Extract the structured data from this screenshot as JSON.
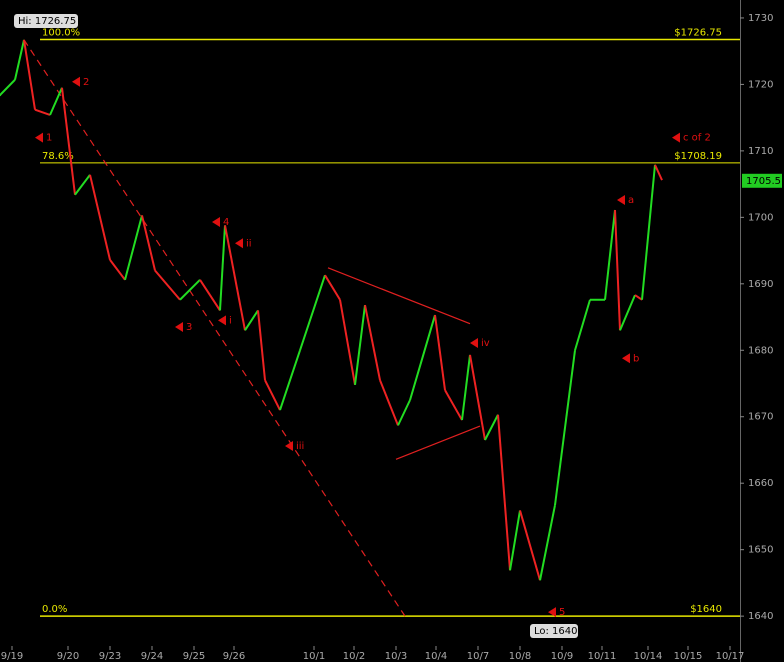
{
  "chart_data": {
    "type": "line",
    "xlim": [
      0,
      18.5
    ],
    "ylim": [
      1633.1,
      1732.7
    ],
    "xticks": [
      {
        "value": 0.3,
        "label": "9/19"
      },
      {
        "value": 1.7,
        "label": "9/20"
      },
      {
        "value": 2.75,
        "label": "9/23"
      },
      {
        "value": 3.8,
        "label": "9/24"
      },
      {
        "value": 4.85,
        "label": "9/25"
      },
      {
        "value": 5.85,
        "label": "9/26"
      },
      {
        "value": 7.85,
        "label": "10/1"
      },
      {
        "value": 8.85,
        "label": "10/2"
      },
      {
        "value": 9.9,
        "label": "10/3"
      },
      {
        "value": 10.9,
        "label": "10/4"
      },
      {
        "value": 11.95,
        "label": "10/7"
      },
      {
        "value": 13,
        "label": "10/8"
      },
      {
        "value": 14.05,
        "label": "10/9"
      },
      {
        "value": 15.05,
        "label": "10/11"
      },
      {
        "value": 16.2,
        "label": "10/14"
      },
      {
        "value": 17.2,
        "label": "10/15"
      },
      {
        "value": 18.25,
        "label": "10/17"
      }
    ],
    "yticks": [
      1640,
      1650,
      1660,
      1670,
      1680,
      1690,
      1700,
      1710,
      1720,
      1730
    ],
    "series": [
      {
        "up_color": "#22dd22",
        "down_color": "#ee2222",
        "x": [
          0,
          0.375,
          0.6,
          0.875,
          1.25,
          1.55,
          1.875,
          2.25,
          2.75,
          3.125,
          3.55,
          3.875,
          4.5,
          5,
          5.5,
          5.625,
          6.125,
          6.45,
          6.625,
          7,
          7.5,
          8.125,
          8.5,
          8.875,
          9.125,
          9.5,
          9.95,
          10.25,
          10.875,
          11.125,
          11.55,
          11.75,
          12.125,
          12.45,
          12.75,
          13,
          13.5,
          13.875,
          14.375,
          14.75,
          15.125,
          15.375,
          15.5,
          15.875,
          16.05,
          16.375,
          16.55
        ],
        "values": [
          1718.4,
          1720.7,
          1726.7,
          1716.2,
          1715.4,
          1719.5,
          1703.4,
          1706.4,
          1693.6,
          1690.6,
          1700.3,
          1692,
          1687.6,
          1690.6,
          1686,
          1698.8,
          1683,
          1686,
          1675.5,
          1671,
          1680,
          1691.3,
          1687.6,
          1674.8,
          1686.8,
          1675.5,
          1668.7,
          1672.5,
          1685.3,
          1674,
          1669.5,
          1679.3,
          1666.5,
          1670.3,
          1646.9,
          1655.9,
          1645.4,
          1656.7,
          1680,
          1687.6,
          1687.6,
          1701.1,
          1683,
          1688.3,
          1687.6,
          1707.9,
          1705.6
        ]
      }
    ],
    "levels": [
      {
        "value": 1726.75,
        "percent": "100.0%",
        "label": "$1726.75",
        "width": 1.5
      },
      {
        "value": 1708.19,
        "percent": "78.6%",
        "label": "$1708.19",
        "width": 1
      },
      {
        "value": 1640,
        "percent": "0.0%",
        "label": "$1640",
        "width": 1.5
      }
    ],
    "level_color": "#e8e800",
    "hi_label": "Hi: 1726.75",
    "lo_label": "Lo: 1640",
    "last_label": "1705.5",
    "last_value": 1705.5,
    "trendlines": [
      {
        "from": [
          0.6,
          1726.7
        ],
        "to": [
          10.125,
          1640
        ],
        "dashed": true
      },
      {
        "from": [
          8.2,
          1692.4
        ],
        "to": [
          11.75,
          1684
        ]
      },
      {
        "from": [
          9.9,
          1663.6
        ],
        "to": [
          12,
          1668.6
        ]
      }
    ],
    "annotations": [
      {
        "text": "1",
        "x": 0.875,
        "y": 1712
      },
      {
        "text": "2",
        "x": 1.8,
        "y": 1720.4
      },
      {
        "text": "3",
        "x": 4.375,
        "y": 1683.5
      },
      {
        "text": "4",
        "x": 5.3,
        "y": 1699.3
      },
      {
        "text": "5",
        "x": 13.7,
        "y": 1640.6
      },
      {
        "text": "i",
        "x": 5.45,
        "y": 1684.5
      },
      {
        "text": "ii",
        "x": 5.875,
        "y": 1696.1
      },
      {
        "text": "iii",
        "x": 7.125,
        "y": 1665.6
      },
      {
        "text": "iv",
        "x": 11.75,
        "y": 1681.1
      },
      {
        "text": "a",
        "x": 15.425,
        "y": 1702.6
      },
      {
        "text": "b",
        "x": 15.55,
        "y": 1678.8
      },
      {
        "text": "c of 2",
        "x": 16.8,
        "y": 1712
      }
    ]
  }
}
